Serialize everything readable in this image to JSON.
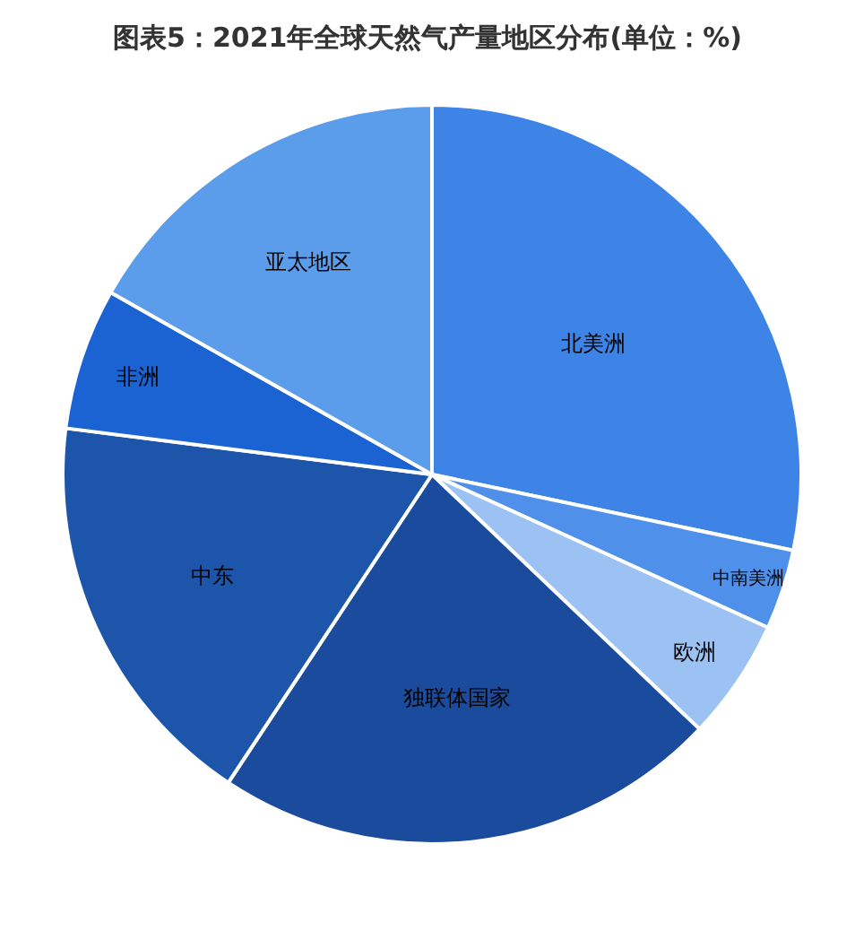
{
  "chart_data": {
    "type": "pie",
    "title": "图表5：2021年全球天然气产量地区分布(单位：%)",
    "categories": [
      "北美洲",
      "中南美洲",
      "欧洲",
      "独联体国家",
      "中东",
      "非洲",
      "亚太地区"
    ],
    "values": [
      28.3,
      3.5,
      5.3,
      22.2,
      17.7,
      6.2,
      16.8
    ],
    "colors": [
      "#3d84e6",
      "#4f90ea",
      "#9cc2f3",
      "#1b4b9c",
      "#1d55ab",
      "#1b62d2",
      "#5b9ceb"
    ],
    "legend": false
  }
}
